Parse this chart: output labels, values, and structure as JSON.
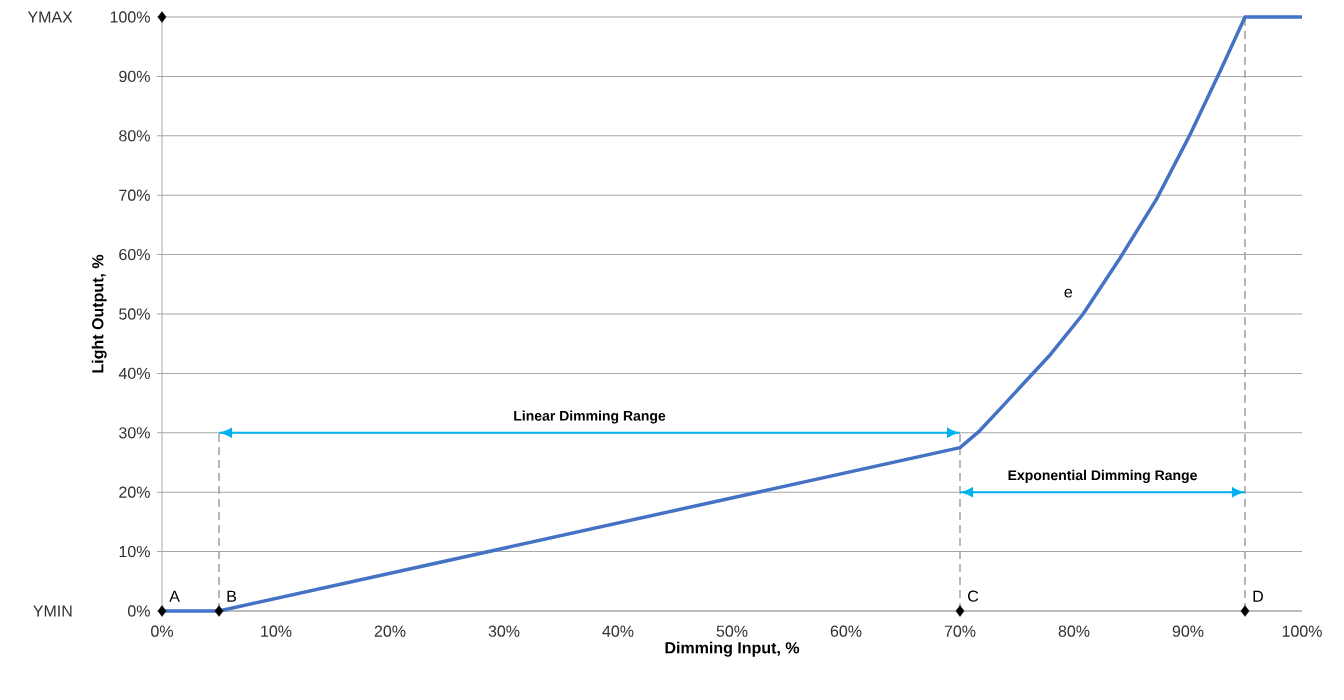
{
  "chart_data": {
    "type": "line",
    "xlabel": "Dimming Input, %",
    "ylabel": "Light Output, %",
    "xlim": [
      0,
      100
    ],
    "ylim": [
      0,
      100
    ],
    "xticks": [
      {
        "value": 0,
        "label": "0%"
      },
      {
        "value": 10,
        "label": "10%"
      },
      {
        "value": 20,
        "label": "20%"
      },
      {
        "value": 30,
        "label": "30%"
      },
      {
        "value": 40,
        "label": "40%"
      },
      {
        "value": 50,
        "label": "50%"
      },
      {
        "value": 60,
        "label": "60%"
      },
      {
        "value": 70,
        "label": "70%"
      },
      {
        "value": 80,
        "label": "80%"
      },
      {
        "value": 90,
        "label": "90%"
      },
      {
        "value": 100,
        "label": "100%"
      }
    ],
    "yticks": [
      {
        "value": 0,
        "label": "0%"
      },
      {
        "value": 10,
        "label": "10%"
      },
      {
        "value": 20,
        "label": "20%"
      },
      {
        "value": 30,
        "label": "30%"
      },
      {
        "value": 40,
        "label": "40%"
      },
      {
        "value": 50,
        "label": "50%"
      },
      {
        "value": 60,
        "label": "60%"
      },
      {
        "value": 70,
        "label": "70%"
      },
      {
        "value": 80,
        "label": "80%"
      },
      {
        "value": 90,
        "label": "90%"
      },
      {
        "value": 100,
        "label": "100%"
      }
    ],
    "grid": "y",
    "series": [
      {
        "line_style": "dashed",
        "color": "#a6a6a6",
        "x": [
          5,
          5
        ],
        "values": [
          0,
          30
        ]
      },
      {
        "line_style": "dashed",
        "color": "#a6a6a6",
        "x": [
          70,
          70
        ],
        "values": [
          0,
          30
        ]
      },
      {
        "line_style": "dashed",
        "color": "#a6a6a6",
        "x": [
          95,
          95
        ],
        "values": [
          0,
          100
        ]
      },
      {
        "line_style": "solid",
        "color": "#00b0f0",
        "x": [
          5,
          70
        ],
        "values": [
          30,
          30
        ]
      },
      {
        "line_style": "solid",
        "color": "#00b0f0",
        "x": [
          70,
          95
        ],
        "values": [
          20,
          20
        ]
      },
      {
        "line_style": "solid",
        "color": "#4472c4",
        "x": [
          0,
          5,
          70,
          71.6,
          73.6,
          76.1,
          77.9,
          80.8,
          84.0,
          87.2,
          90.1,
          92.9,
          95,
          100
        ],
        "values": [
          0,
          0,
          27.5,
          30.1,
          34.2,
          39.4,
          43.1,
          50,
          59.3,
          69.2,
          79.9,
          91.2,
          100,
          100
        ]
      },
      {
        "type": "scatter",
        "marker": "diamond",
        "color": "#000000",
        "x": [
          0,
          0,
          5,
          70,
          95
        ],
        "values": [
          100,
          0,
          0,
          0,
          0
        ]
      }
    ],
    "annotations": [
      "YMAX",
      "YMIN",
      {
        "text": "A",
        "x": 0,
        "y": 0
      },
      {
        "text": "B",
        "x": 5,
        "y": 0
      },
      {
        "text": "C",
        "x": 70,
        "y": 0
      },
      {
        "text": "D",
        "x": 95,
        "y": 0
      },
      "e",
      {
        "text": "Linear Dimming Range",
        "x": 37.5,
        "y": 30
      },
      {
        "text": "Exponential Dimming Range",
        "x": 82.5,
        "y": 20
      }
    ]
  }
}
